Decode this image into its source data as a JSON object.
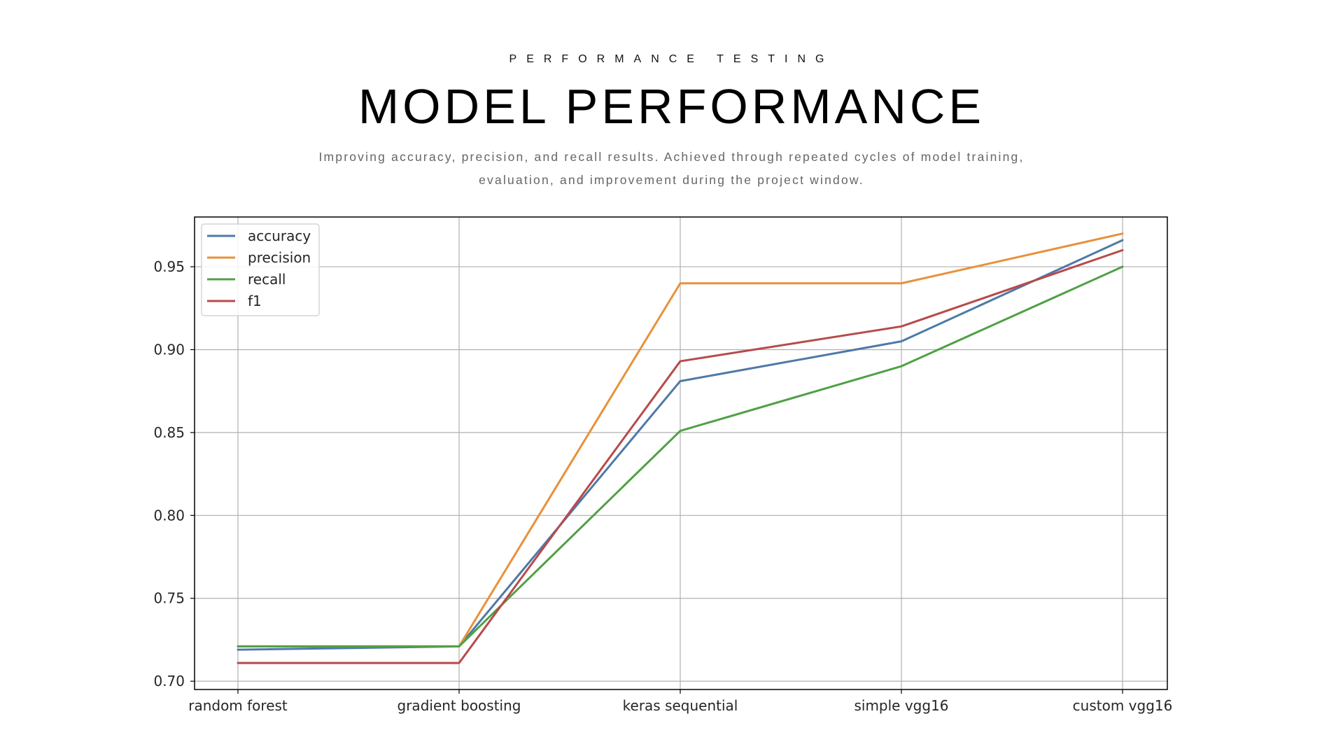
{
  "header": {
    "eyebrow": "PERFORMANCE TESTING",
    "title": "MODEL PERFORMANCE",
    "subtitle_line1": "Improving accuracy, precision, and recall results. Achieved through repeated cycles of model training,",
    "subtitle_line2": "evaluation, and improvement during the project window."
  },
  "chart_data": {
    "type": "line",
    "title": "",
    "xlabel": "",
    "ylabel": "",
    "categories": [
      "random forest",
      "gradient boosting",
      "keras sequential",
      "simple vgg16",
      "custom vgg16"
    ],
    "ylim": [
      0.695,
      0.98
    ],
    "yticks": [
      "0.70",
      "0.75",
      "0.80",
      "0.85",
      "0.90",
      "0.95"
    ],
    "grid": true,
    "legend_position": "upper-left",
    "series": [
      {
        "name": "accuracy",
        "color": "#4e79a7",
        "values": [
          0.719,
          0.721,
          0.881,
          0.905,
          0.966
        ]
      },
      {
        "name": "precision",
        "color": "#e8913a",
        "values": [
          0.721,
          0.721,
          0.94,
          0.94,
          0.97
        ]
      },
      {
        "name": "recall",
        "color": "#50a045",
        "values": [
          0.721,
          0.721,
          0.851,
          0.89,
          0.95
        ]
      },
      {
        "name": "f1",
        "color": "#b84a4a",
        "values": [
          0.711,
          0.711,
          0.893,
          0.914,
          0.96
        ]
      }
    ]
  }
}
